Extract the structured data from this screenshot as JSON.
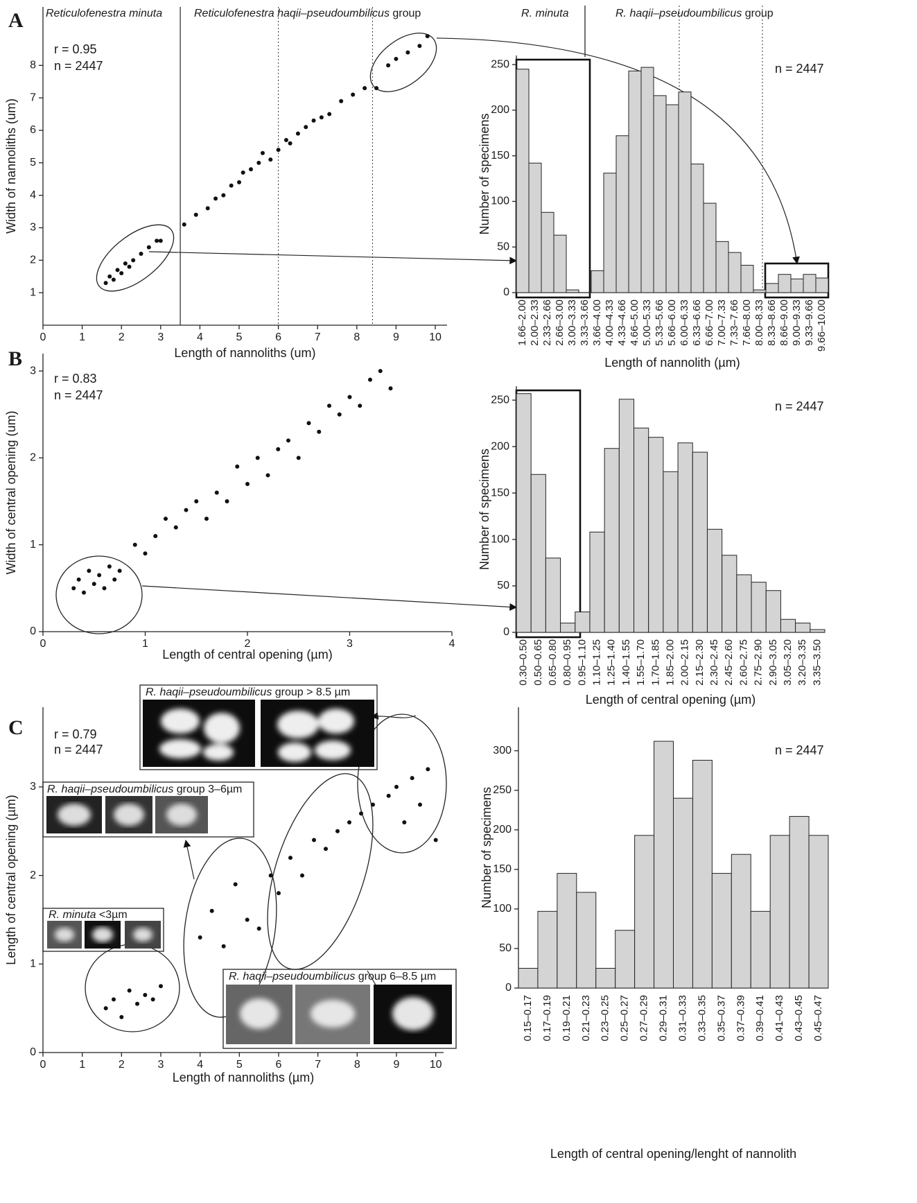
{
  "panel_labels": [
    "A",
    "B",
    "C"
  ],
  "insets": [
    {
      "species": "R. haqii–pseudoumbilicus",
      "size": " group > 8.5 µm"
    },
    {
      "species": "R. haqii–pseudoumbilicus",
      "size": " group 3–6µm"
    },
    {
      "species": "R. minuta",
      "size": " <3µm"
    },
    {
      "species": "R. haqii–pseudoumbilicus",
      "size": " group 6–8.5 µm"
    }
  ],
  "hist_groups": [
    {
      "italic": "R. minuta"
    },
    {
      "italic": "R. haqii–pseudoumbilicus",
      "plain": " group"
    }
  ],
  "chart_data": [
    {
      "type": "scatter",
      "x_label": "Length of nannoliths (um)",
      "y_label": "Width of nannoliths (um)",
      "annotations": [
        "r = 0.95",
        "n = 2447"
      ],
      "groups": [
        {
          "italic": "Reticulofenestra minuta"
        },
        {
          "italic": "Reticulofenestra haqii–pseudoumbilicus",
          "plain": " group"
        }
      ],
      "dividers": [
        {
          "value": 3.5,
          "style": "solid"
        },
        {
          "value": 6,
          "style": "dotted"
        },
        {
          "value": 8.4,
          "style": "dotted"
        }
      ],
      "xlim": [
        0,
        10.3
      ],
      "ylim": [
        0,
        9.8
      ],
      "xticks": [
        0,
        1,
        2,
        3,
        4,
        5,
        6,
        7,
        8,
        9,
        10
      ],
      "yticks": [
        1,
        2,
        3,
        4,
        5,
        6,
        7,
        8
      ],
      "x": [
        1.6,
        1.7,
        1.8,
        1.9,
        2.0,
        2.1,
        2.2,
        2.3,
        2.5,
        2.7,
        2.9,
        3.0,
        3.6,
        3.9,
        4.2,
        4.4,
        4.6,
        4.8,
        5.0,
        5.1,
        5.3,
        5.5,
        5.6,
        5.8,
        6.0,
        6.2,
        6.3,
        6.5,
        6.7,
        6.9,
        7.1,
        7.3,
        7.6,
        7.9,
        8.2,
        8.5,
        8.8,
        9.0,
        9.3,
        9.6,
        9.8
      ],
      "y": [
        1.3,
        1.5,
        1.4,
        1.7,
        1.6,
        1.9,
        1.8,
        2.0,
        2.2,
        2.4,
        2.6,
        2.6,
        3.1,
        3.4,
        3.6,
        3.9,
        4.0,
        4.3,
        4.4,
        4.7,
        4.8,
        5.0,
        5.3,
        5.1,
        5.4,
        5.7,
        5.6,
        5.9,
        6.1,
        6.3,
        6.4,
        6.5,
        6.9,
        7.1,
        7.3,
        7.3,
        8.0,
        8.2,
        8.4,
        8.6,
        8.9
      ],
      "color": "#111111"
    },
    {
      "type": "bar",
      "x_label": "Length of nannolith (µm)",
      "y_label": "Number of specimens",
      "annotations": [
        "n = 2447"
      ],
      "categories": [
        "1.66–2.00",
        "2.00–2.33",
        "2.33–2.66",
        "2.66–3.00",
        "3.00–3.33",
        "3.33–3.66",
        "3.66–4.00",
        "4.00–4.33",
        "4.33–4.66",
        "4.66–5.00",
        "5.00–5.33",
        "5.33–5.66",
        "5.66–6.00",
        "6.00–6.33",
        "6.33–6.66",
        "6.66–7.00",
        "7.00–7.33",
        "7.33–7.66",
        "7.66–8.00",
        "8.00–8.33",
        "8.33–8.66",
        "8.66–9.00",
        "9.00–9.33",
        "9.33–9.66",
        "9.66–10.00"
      ],
      "values": [
        245,
        142,
        88,
        63,
        3,
        0,
        24,
        131,
        172,
        243,
        247,
        216,
        206,
        220,
        141,
        98,
        56,
        44,
        30,
        3,
        10,
        20,
        15,
        20,
        16
      ],
      "ylim": [
        0,
        260
      ],
      "yticks": [
        0,
        50,
        100,
        150,
        200,
        250
      ],
      "color": "#d4d4d4"
    },
    {
      "type": "scatter",
      "x_label": "Length of central opening (µm)",
      "y_label": "Width of central opening (um)",
      "annotations": [
        "r = 0.83",
        "n = 2447"
      ],
      "xlim": [
        0,
        4
      ],
      "ylim": [
        0,
        3.2
      ],
      "xticks": [
        0,
        1,
        2,
        3,
        4
      ],
      "yticks": [
        0,
        1,
        2,
        3
      ],
      "x": [
        0.3,
        0.35,
        0.4,
        0.45,
        0.5,
        0.55,
        0.6,
        0.65,
        0.7,
        0.75,
        0.9,
        1.0,
        1.1,
        1.2,
        1.3,
        1.4,
        1.5,
        1.6,
        1.7,
        1.8,
        1.9,
        2.0,
        2.1,
        2.2,
        2.3,
        2.4,
        2.5,
        2.6,
        2.7,
        2.8,
        2.9,
        3.0,
        3.1,
        3.2,
        3.3,
        3.4
      ],
      "y": [
        0.5,
        0.6,
        0.45,
        0.7,
        0.55,
        0.65,
        0.5,
        0.75,
        0.6,
        0.7,
        1.0,
        0.9,
        1.1,
        1.3,
        1.2,
        1.4,
        1.5,
        1.3,
        1.6,
        1.5,
        1.9,
        1.7,
        2.0,
        1.8,
        2.1,
        2.2,
        2.0,
        2.4,
        2.3,
        2.6,
        2.5,
        2.7,
        2.6,
        2.9,
        3.0,
        2.8
      ],
      "color": "#111111"
    },
    {
      "type": "bar",
      "x_label": "Length of central opening (µm)",
      "y_label": "Number of specimens",
      "annotations": [
        "n = 2447"
      ],
      "categories": [
        "0.30–0.50",
        "0.50–0.65",
        "0.65–0.80",
        "0.80–0.95",
        "0.95–1.10",
        "1.10–1.25",
        "1.25–1.40",
        "1.40–1.55",
        "1.55–1.70",
        "1.70–1.85",
        "1.85–2.00",
        "2.00–2.15",
        "2.15–2.30",
        "2.30–2.45",
        "2.45–2.60",
        "2.60–2.75",
        "2.75–2.90",
        "2.90–3.05",
        "3.05–3.20",
        "3.20–3.35",
        "3.35–3.50"
      ],
      "values": [
        257,
        170,
        80,
        10,
        22,
        108,
        198,
        251,
        220,
        210,
        173,
        204,
        194,
        111,
        83,
        62,
        54,
        45,
        14,
        10,
        3
      ],
      "ylim": [
        0,
        265
      ],
      "yticks": [
        0,
        50,
        100,
        150,
        200,
        250
      ],
      "color": "#d4d4d4"
    },
    {
      "type": "scatter",
      "x_label": "Length of nannoliths (µm)",
      "y_label": "Length of central opening (µm)",
      "annotations": [
        "r =  0.79",
        "n = 2447"
      ],
      "xlim": [
        0,
        10.2
      ],
      "ylim": [
        0,
        3.9
      ],
      "xticks": [
        0,
        1,
        2,
        3,
        4,
        5,
        6,
        7,
        8,
        9,
        10
      ],
      "yticks": [
        0,
        1,
        2,
        3
      ],
      "x": [
        1.6,
        1.8,
        2.0,
        2.2,
        2.4,
        2.6,
        2.8,
        3.0,
        4.0,
        4.3,
        4.6,
        4.9,
        5.2,
        5.5,
        5.8,
        6.0,
        6.3,
        6.6,
        6.9,
        7.2,
        7.5,
        7.8,
        8.1,
        8.4,
        8.8,
        9.0,
        9.2,
        9.4,
        9.6,
        9.8,
        10.0
      ],
      "y": [
        0.5,
        0.6,
        0.4,
        0.7,
        0.55,
        0.65,
        0.6,
        0.75,
        1.3,
        1.6,
        1.2,
        1.9,
        1.5,
        1.4,
        2.0,
        1.8,
        2.2,
        2.0,
        2.4,
        2.3,
        2.5,
        2.6,
        2.7,
        2.8,
        2.9,
        3.0,
        2.6,
        3.1,
        2.8,
        3.2,
        2.4
      ],
      "color": "#111111"
    },
    {
      "type": "bar",
      "x_label": "Length of central opening/lenght of nannolith",
      "y_label": "Number of specimens",
      "annotations": [
        "n = 2447"
      ],
      "categories": [
        "0.15–0.17",
        "0.17–0.19",
        "0.19–0.21",
        "0.21–0.23",
        "0.23–0.25",
        "0.25–0.27",
        "0.27–0.29",
        "0.29–0.31",
        "0.31–0.33",
        "0.33–0.35",
        "0.35–0.37",
        "0.37–0.39",
        "0.39–0.41",
        "0.41–0.43",
        "0.43–0.45",
        "0.45–0.47"
      ],
      "values": [
        25,
        97,
        145,
        121,
        25,
        73,
        193,
        312,
        240,
        288,
        145,
        169,
        97,
        193,
        217,
        193
      ],
      "ylim": [
        0,
        355
      ],
      "yticks": [
        0,
        50,
        100,
        150,
        200,
        250,
        300
      ],
      "color": "#d4d4d4"
    }
  ]
}
